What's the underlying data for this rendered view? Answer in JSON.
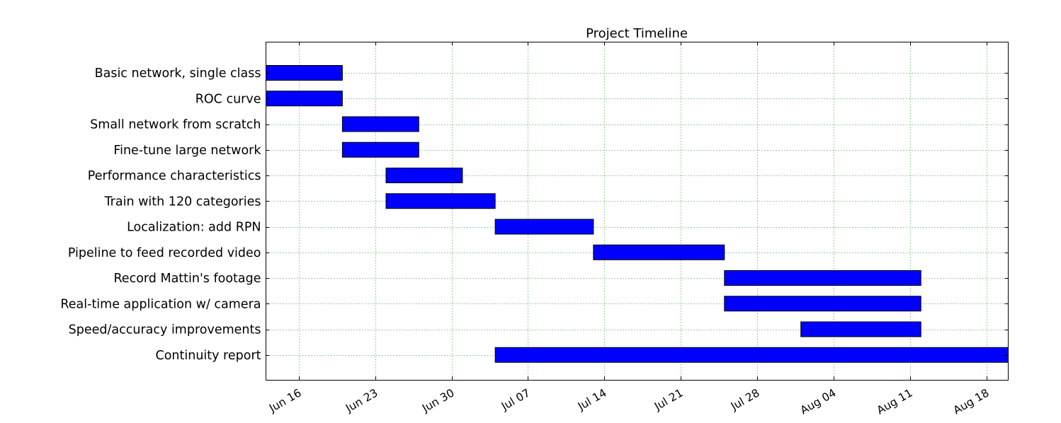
{
  "chart_data": {
    "type": "bar",
    "orientation": "horizontal",
    "title": "Project Timeline",
    "xlabel": "",
    "ylabel": "",
    "grid": true,
    "bar_color": "#0000ff",
    "edge_color": "#000000",
    "grid_color": "#2ca02c",
    "x_range": [
      "2016-06-12",
      "2016-08-19"
    ],
    "x_ticks": [
      {
        "date": "2016-06-15",
        "label": "Jun 16"
      },
      {
        "date": "2016-06-22",
        "label": "Jun 23"
      },
      {
        "date": "2016-06-29",
        "label": "Jun 30"
      },
      {
        "date": "2016-07-06",
        "label": "Jul 07"
      },
      {
        "date": "2016-07-13",
        "label": "Jul 14"
      },
      {
        "date": "2016-07-20",
        "label": "Jul 21"
      },
      {
        "date": "2016-07-27",
        "label": "Jul 28"
      },
      {
        "date": "2016-08-03",
        "label": "Aug 04"
      },
      {
        "date": "2016-08-10",
        "label": "Aug 11"
      },
      {
        "date": "2016-08-17",
        "label": "Aug 18"
      }
    ],
    "tasks": [
      {
        "name": "Basic network, single class",
        "start": "2016-06-12",
        "end": "2016-06-19"
      },
      {
        "name": "ROC curve",
        "start": "2016-06-12",
        "end": "2016-06-19"
      },
      {
        "name": "Small network from scratch",
        "start": "2016-06-19",
        "end": "2016-06-26"
      },
      {
        "name": "Fine-tune large network",
        "start": "2016-06-19",
        "end": "2016-06-26"
      },
      {
        "name": "Performance characteristics",
        "start": "2016-06-23",
        "end": "2016-06-30"
      },
      {
        "name": "Train with 120 categories",
        "start": "2016-06-23",
        "end": "2016-07-03"
      },
      {
        "name": "Localization: add RPN",
        "start": "2016-07-03",
        "end": "2016-07-12"
      },
      {
        "name": "Pipeline to feed recorded video",
        "start": "2016-07-12",
        "end": "2016-07-24"
      },
      {
        "name": "Record Mattin's footage",
        "start": "2016-07-24",
        "end": "2016-08-11"
      },
      {
        "name": "Real-time application w/ camera",
        "start": "2016-07-24",
        "end": "2016-08-11"
      },
      {
        "name": "Speed/accuracy improvements",
        "start": "2016-07-31",
        "end": "2016-08-11"
      },
      {
        "name": "Continuity report",
        "start": "2016-07-03",
        "end": "2016-08-19"
      }
    ]
  }
}
